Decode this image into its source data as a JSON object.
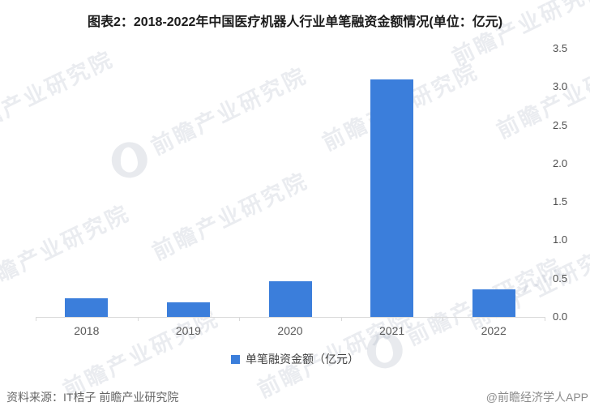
{
  "title": "图表2：2018-2022年中国医疗机器人行业单笔融资金额情况(单位：亿元)",
  "chart_data": {
    "type": "bar",
    "title": "图表2：2018-2022年中国医疗机器人行业单笔融资金额情况(单位：亿元)",
    "categories": [
      "2018",
      "2019",
      "2020",
      "2021",
      "2022"
    ],
    "series": [
      {
        "name": "单笔融资金额（亿元）",
        "values": [
          0.24,
          0.19,
          0.46,
          3.1,
          0.36
        ]
      }
    ],
    "xlabel": "",
    "ylabel": "",
    "ylim": [
      0,
      3.5
    ],
    "y_ticks": [
      0.0,
      0.5,
      1.0,
      1.5,
      2.0,
      2.5,
      3.0,
      3.5
    ],
    "y_tick_labels": [
      "0.0",
      "0.5",
      "1.0",
      "1.5",
      "2.0",
      "2.5",
      "3.0",
      "3.5"
    ],
    "y_axis_side": "right",
    "grid": false,
    "legend_position": "bottom",
    "bar_color": "#3b7edb"
  },
  "legend": {
    "label": "单笔融资金额（亿元）",
    "marker_color": "#3b7edb"
  },
  "footer": {
    "source": "资料来源：IT桔子 前瞻产业研究院",
    "credit": "@前瞻经济学人APP"
  },
  "watermark": {
    "text": "前瞻产业研究院"
  },
  "colors": {
    "bar": "#3b7edb",
    "axis_line": "#d9d9d9",
    "x_label": "#595959",
    "y_label": "#4d4d4d",
    "title": "#1a1a1a"
  }
}
